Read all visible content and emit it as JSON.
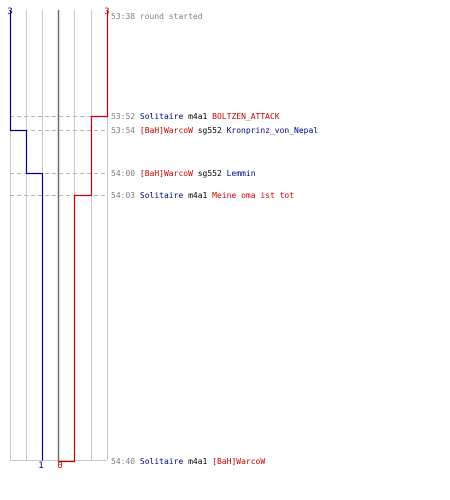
{
  "colors": {
    "blue": "#00008b",
    "red": "#cc0000",
    "grid": "#c8c8c8",
    "center": "#707070",
    "time": "#808080",
    "dash": "#b4b4b4"
  },
  "scores": {
    "blue_start": "3",
    "red_start": "3",
    "blue_end": "1",
    "red_end": "0"
  },
  "events": [
    {
      "time": "53:38",
      "text": "round started"
    },
    {
      "time": "53:52",
      "killer": "Solitaire",
      "killer_team": "blue",
      "weapon": "m4a1",
      "victim": "BOLTZEN_ATTACK",
      "victim_team": "red"
    },
    {
      "time": "53:54",
      "killer": "[BaH]WarcoW",
      "killer_team": "red",
      "weapon": "sg552",
      "victim": "Kronprinz_von_Nepal",
      "victim_team": "blue"
    },
    {
      "time": "54:00",
      "killer": "[BaH]WarcoW",
      "killer_team": "red",
      "weapon": "sg552",
      "victim": "Lemmin",
      "victim_team": "blue"
    },
    {
      "time": "54:03",
      "killer": "Solitaire",
      "killer_team": "blue",
      "weapon": "m4a1",
      "victim": "Meine oma ist tot",
      "victim_team": "red"
    },
    {
      "time": "54:40",
      "killer": "Solitaire",
      "killer_team": "blue",
      "weapon": "m4a1",
      "victim": "[BaH]WarcoW",
      "victim_team": "red"
    }
  ]
}
